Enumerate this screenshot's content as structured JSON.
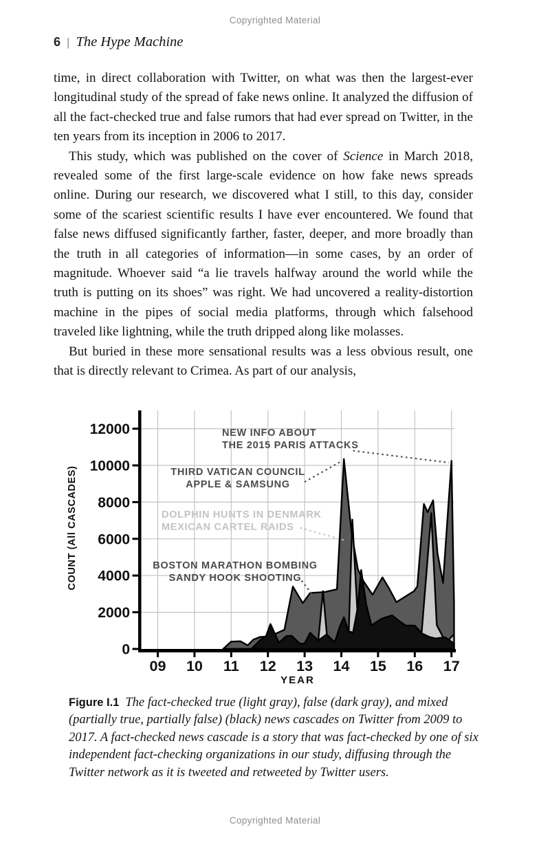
{
  "page": {
    "copyright_header": "Copyrighted Material",
    "copyright_footer": "Copyrighted Material",
    "running_head": {
      "page_number": "6",
      "separator": "|",
      "book_title": "The Hype Machine"
    }
  },
  "body": {
    "p1": "time, in direct collaboration with Twitter, on what was then the largest-ever longitudinal study of the spread of fake news online. It analyzed the diffusion of all the fact-checked true and false rumors that had ever spread on Twitter, in the ten years from its inception in 2006 to 2017.",
    "p2_before": "This study, which was published on the cover of ",
    "p2_italic": "Science",
    "p2_after": " in March 2018, revealed some of the first large-scale evidence on how fake news spreads online. During our research, we discovered what I still, to this day, consider some of the scariest scientific results I have ever encountered. We found that false news diffused significantly farther, faster, deeper, and more broadly than the truth in all categories of information—in some cases, by an order of magnitude. Whoever said “a lie travels halfway around the world while the truth is putting on its shoes” was right. We had uncovered a reality-distortion machine in the pipes of social media platforms, through which falsehood traveled like lightning, while the truth dripped along like molasses.",
    "p3": "But buried in these more sensational results was a less obvious result, one that is directly relevant to Crimea. As part of our analysis,"
  },
  "chart_data": {
    "type": "area",
    "xlabel": "YEAR",
    "ylabel": "COUNT (All CASCADES)",
    "x_ticks": [
      "09",
      "10",
      "11",
      "12",
      "13",
      "14",
      "15",
      "16",
      "17"
    ],
    "x_tick_years": [
      2009,
      2010,
      2011,
      2012,
      2013,
      2014,
      2015,
      2016,
      2017
    ],
    "y_ticks": [
      0,
      2000,
      4000,
      6000,
      8000,
      10000,
      12000
    ],
    "xlim": [
      2009,
      2017.07
    ],
    "ylim": [
      0,
      12600
    ],
    "grid": true,
    "grid_color": "#c3c3c3",
    "outline_color": "#000000",
    "legend_position": "none",
    "series": [
      {
        "name": "false (dark gray)",
        "color": "#595959",
        "points": [
          [
            2010.78,
            0
          ],
          [
            2011.0,
            400
          ],
          [
            2011.25,
            420
          ],
          [
            2011.45,
            200
          ],
          [
            2011.6,
            500
          ],
          [
            2011.78,
            650
          ],
          [
            2012.0,
            680
          ],
          [
            2012.2,
            820
          ],
          [
            2012.45,
            1050
          ],
          [
            2012.68,
            3400
          ],
          [
            2012.95,
            2500
          ],
          [
            2013.15,
            3050
          ],
          [
            2013.55,
            3100
          ],
          [
            2013.88,
            3250
          ],
          [
            2014.07,
            10350
          ],
          [
            2014.28,
            6300
          ],
          [
            2014.45,
            4350
          ],
          [
            2014.6,
            3700
          ],
          [
            2014.85,
            2950
          ],
          [
            2015.12,
            3900
          ],
          [
            2015.3,
            3300
          ],
          [
            2015.5,
            2550
          ],
          [
            2015.98,
            3150
          ],
          [
            2016.07,
            3400
          ],
          [
            2016.25,
            7900
          ],
          [
            2016.35,
            7450
          ],
          [
            2016.5,
            8100
          ],
          [
            2016.62,
            5200
          ],
          [
            2016.77,
            3600
          ],
          [
            2017.0,
            10250
          ],
          [
            2017.07,
            2500
          ]
        ]
      },
      {
        "name": "true (light gray)",
        "color": "#c9c9c9",
        "points": [
          [
            2010.78,
            0
          ],
          [
            2013.35,
            0
          ],
          [
            2013.5,
            3150
          ],
          [
            2013.64,
            0
          ],
          [
            2014.1,
            0
          ],
          [
            2014.2,
            800
          ],
          [
            2014.3,
            7050
          ],
          [
            2014.45,
            1600
          ],
          [
            2014.56,
            350
          ],
          [
            2015.0,
            80
          ],
          [
            2015.9,
            130
          ],
          [
            2016.05,
            900
          ],
          [
            2016.18,
            700
          ],
          [
            2016.45,
            7400
          ],
          [
            2016.6,
            1300
          ],
          [
            2016.78,
            600
          ],
          [
            2016.9,
            450
          ],
          [
            2017.07,
            800
          ]
        ]
      },
      {
        "name": "mixed (black)",
        "color": "#101010",
        "points": [
          [
            2011.55,
            0
          ],
          [
            2011.8,
            500
          ],
          [
            2011.95,
            700
          ],
          [
            2012.07,
            1360
          ],
          [
            2012.3,
            340
          ],
          [
            2012.5,
            700
          ],
          [
            2012.65,
            720
          ],
          [
            2012.87,
            280
          ],
          [
            2013.0,
            300
          ],
          [
            2013.15,
            880
          ],
          [
            2013.37,
            460
          ],
          [
            2013.6,
            790
          ],
          [
            2013.82,
            360
          ],
          [
            2013.97,
            1280
          ],
          [
            2014.07,
            1730
          ],
          [
            2014.2,
            950
          ],
          [
            2014.32,
            900
          ],
          [
            2014.45,
            2300
          ],
          [
            2014.54,
            4300
          ],
          [
            2014.68,
            2400
          ],
          [
            2014.82,
            1280
          ],
          [
            2015.1,
            1650
          ],
          [
            2015.38,
            1830
          ],
          [
            2015.57,
            1530
          ],
          [
            2015.75,
            1280
          ],
          [
            2016.0,
            1270
          ],
          [
            2016.2,
            840
          ],
          [
            2016.4,
            650
          ],
          [
            2016.57,
            570
          ],
          [
            2016.82,
            640
          ],
          [
            2017.07,
            300
          ]
        ]
      }
    ],
    "annotations": [
      {
        "id": "paris",
        "lines": [
          "NEW INFO ABOUT",
          "THE 2015 PARIS ATTACKS"
        ],
        "color": "#4a4a4a",
        "target": "2017 peak",
        "leader": [
          [
            2014.32,
            10800
          ],
          [
            2016.93,
            10150
          ]
        ]
      },
      {
        "id": "vatican",
        "lines": [
          "THIRD VATICAN COUNCIL",
          "APPLE & SAMSUNG"
        ],
        "color": "#4a4a4a",
        "target": "2014 peak",
        "leader": [
          [
            2013.0,
            9100
          ],
          [
            2014.02,
            10250
          ]
        ]
      },
      {
        "id": "dolphin",
        "lines": [
          "DOLPHIN HUNTS IN DENMARK",
          "MEXICAN CARTEL RAIDS"
        ],
        "color": "#c3c3c3",
        "target": "2014 true-news spike",
        "leader": [
          [
            2012.88,
            6600
          ],
          [
            2014.13,
            5900
          ]
        ]
      },
      {
        "id": "boston",
        "lines": [
          "BOSTON MARATHON BOMBING",
          "SANDY HOOK SHOOTING"
        ],
        "color": "#4a4a4a",
        "target": "2013 plateau",
        "leader": [
          [
            2012.92,
            3720
          ],
          [
            2013.2,
            2980
          ]
        ]
      }
    ]
  },
  "caption": {
    "label": "Figure I.1",
    "text": "The fact-checked true (light gray), false (dark gray), and mixed (partially true, partially false) (black) news cascades on Twitter from 2009 to 2017. A fact-checked news cascade is a story that was fact-checked by one of six independent fact-checking organizations in our study, diffusing through the Twitter network as it is tweeted and retweeted by Twitter users."
  }
}
